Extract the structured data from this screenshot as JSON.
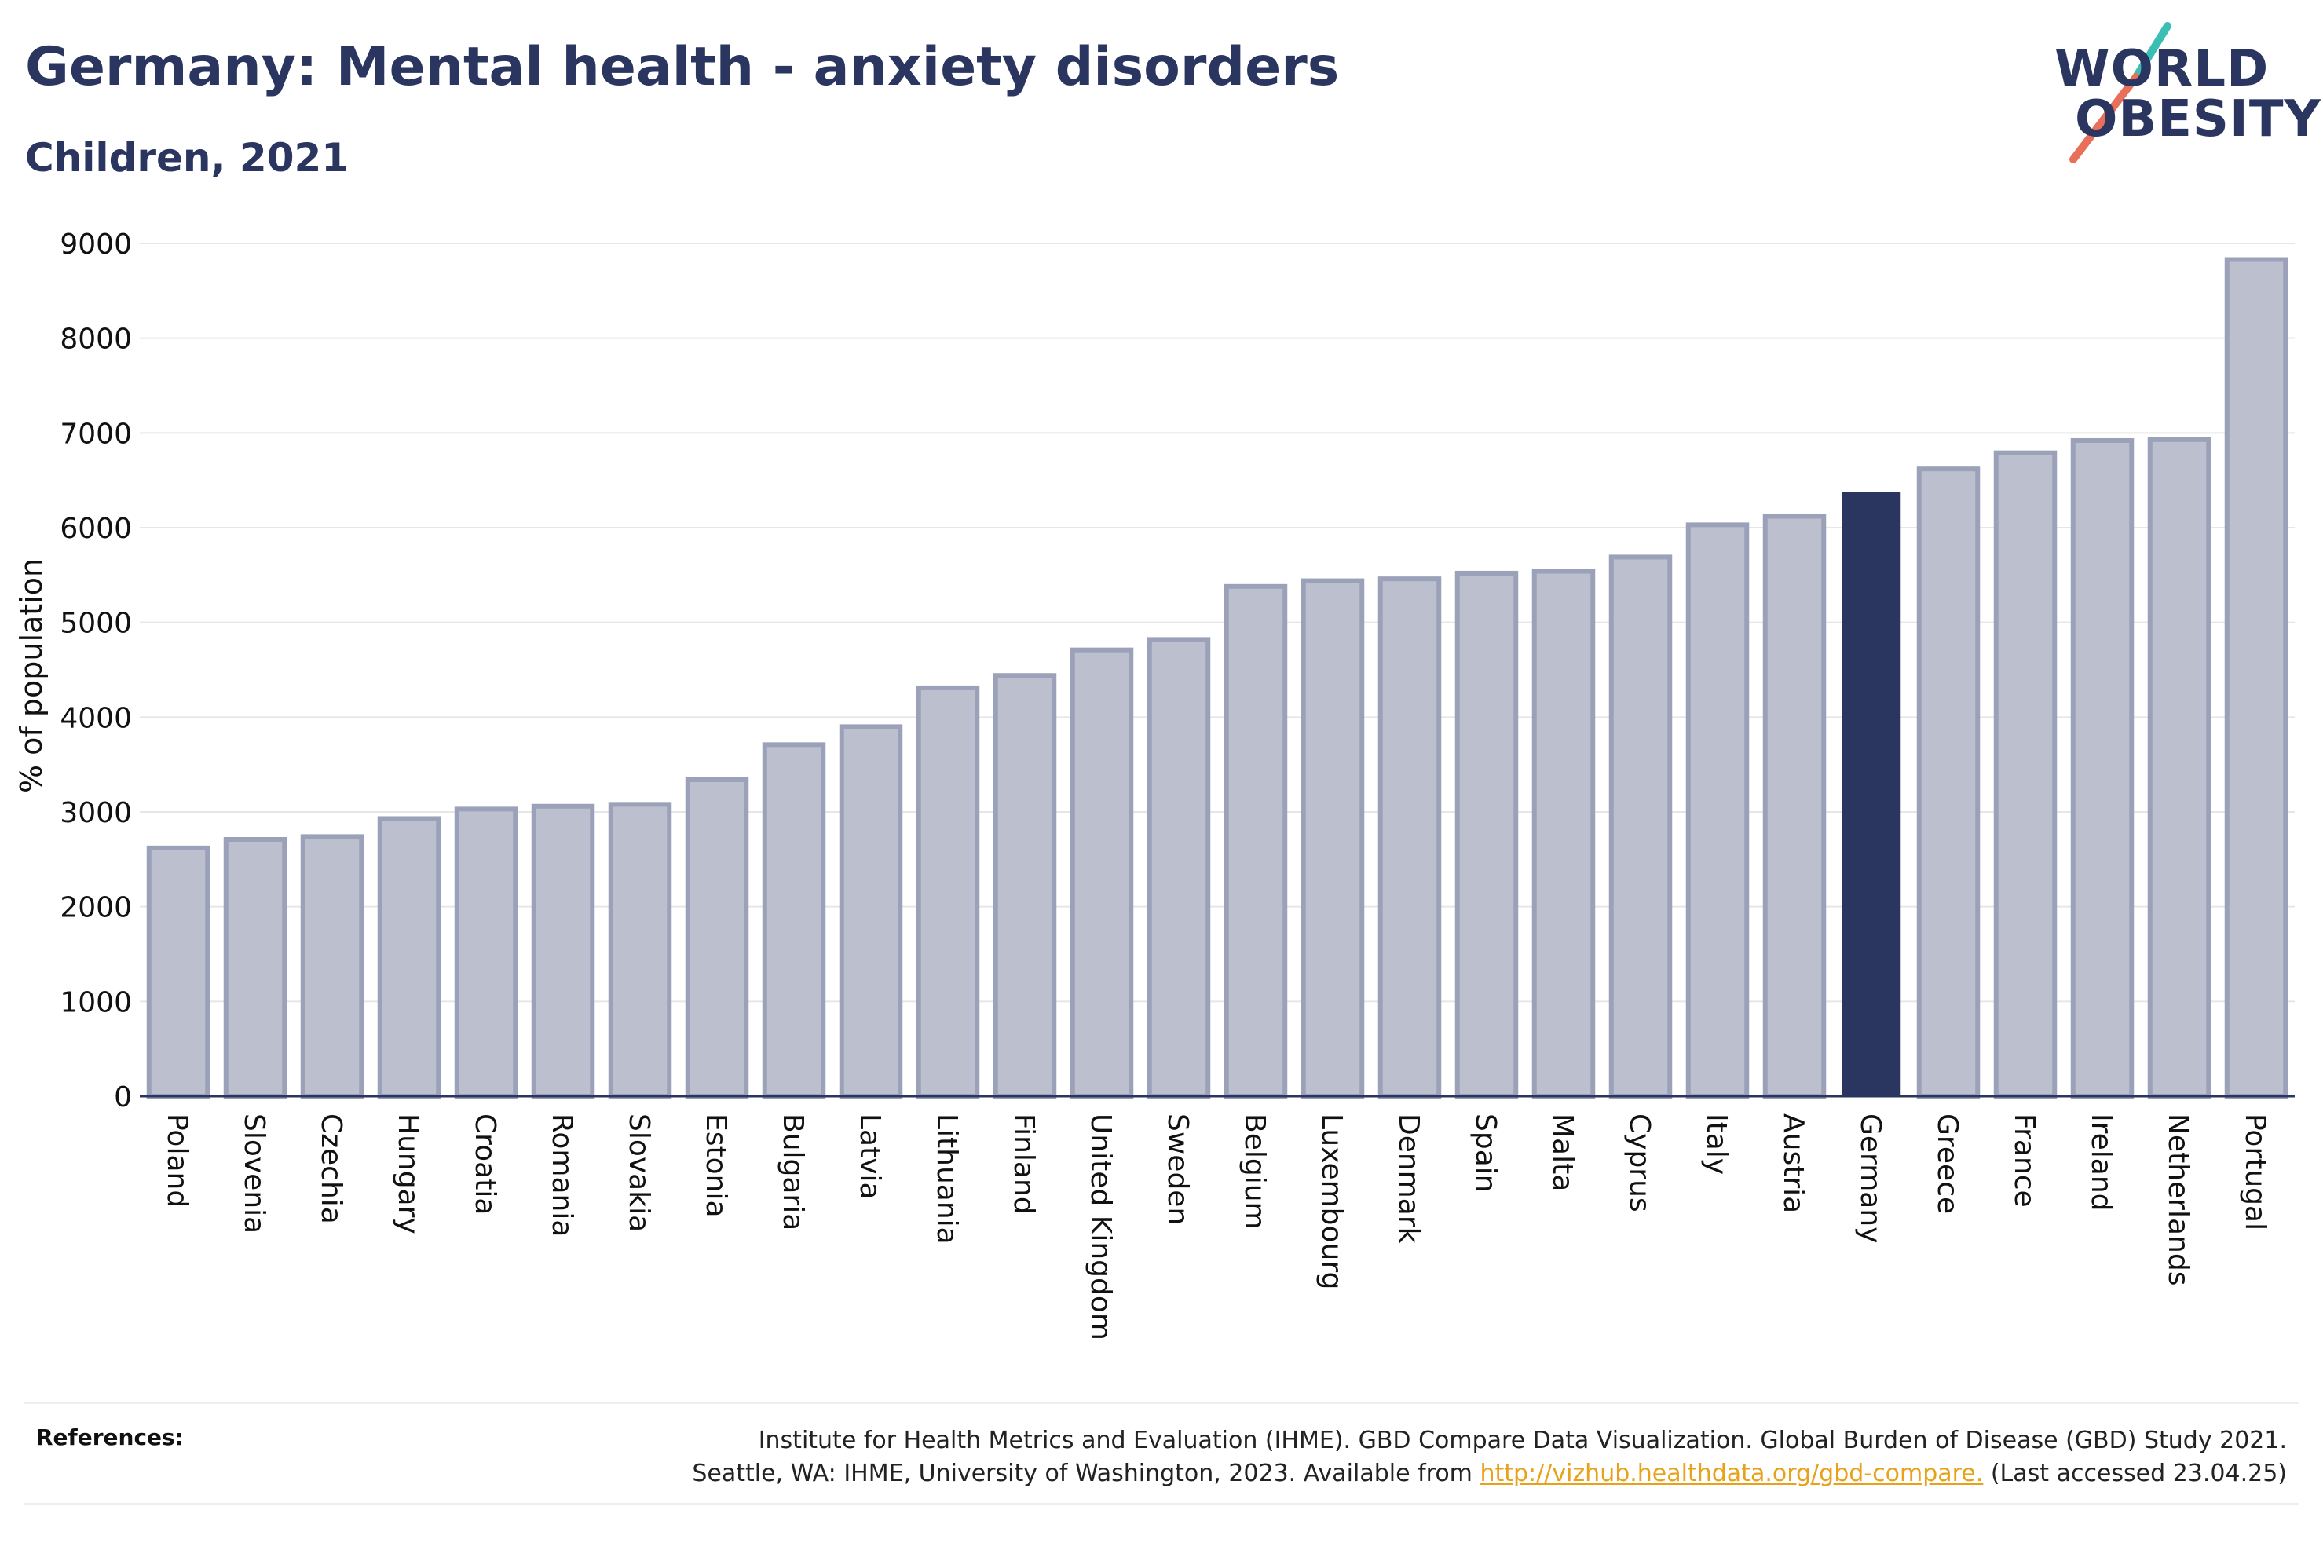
{
  "header": {
    "title": "Germany: Mental health - anxiety disorders",
    "subtitle": "Children, 2021"
  },
  "logo": {
    "line1": "WORLD",
    "line2": "OBESITY",
    "slash_colors": [
      "#3bbfb5",
      "#e8705a"
    ]
  },
  "colors": {
    "highlight": "#2a3560",
    "bar_fill": "#bcc0ce",
    "bar_stroke": "#9ba1b8",
    "grid": "#e6e6e6"
  },
  "chart_data": {
    "type": "bar",
    "title": "Germany: Mental health - anxiety disorders",
    "subtitle": "Children, 2021",
    "ylabel": "% of population",
    "xlabel": "",
    "ylim": [
      0,
      9000
    ],
    "yticks": [
      0,
      1000,
      2000,
      3000,
      4000,
      5000,
      6000,
      7000,
      8000,
      9000
    ],
    "grid": true,
    "highlight": "Germany",
    "categories": [
      "Poland",
      "Slovenia",
      "Czechia",
      "Hungary",
      "Croatia",
      "Romania",
      "Slovakia",
      "Estonia",
      "Bulgaria",
      "Latvia",
      "Lithuania",
      "Finland",
      "United Kingdom",
      "Sweden",
      "Belgium",
      "Luxembourg",
      "Denmark",
      "Spain",
      "Malta",
      "Cyprus",
      "Italy",
      "Austria",
      "Germany",
      "Greece",
      "France",
      "Ireland",
      "Netherlands",
      "Portugal"
    ],
    "values": [
      2620,
      2710,
      2740,
      2930,
      3030,
      3060,
      3080,
      3340,
      3710,
      3900,
      4310,
      4440,
      4710,
      4820,
      5380,
      5440,
      5460,
      5520,
      5540,
      5690,
      6030,
      6120,
      6380,
      6620,
      6790,
      6920,
      6930,
      8830
    ]
  },
  "footer": {
    "label": "References:",
    "line1": "Institute for Health Metrics and Evaluation (IHME). GBD Compare Data Visualization. Global Burden of Disease (GBD) Study 2021.",
    "line2_prefix": "Seattle, WA: IHME, University of Washington, 2023. Available from ",
    "link": "http://vizhub.healthdata.org/gbd-compare.",
    "line2_suffix": " (Last accessed 23.04.25)"
  }
}
